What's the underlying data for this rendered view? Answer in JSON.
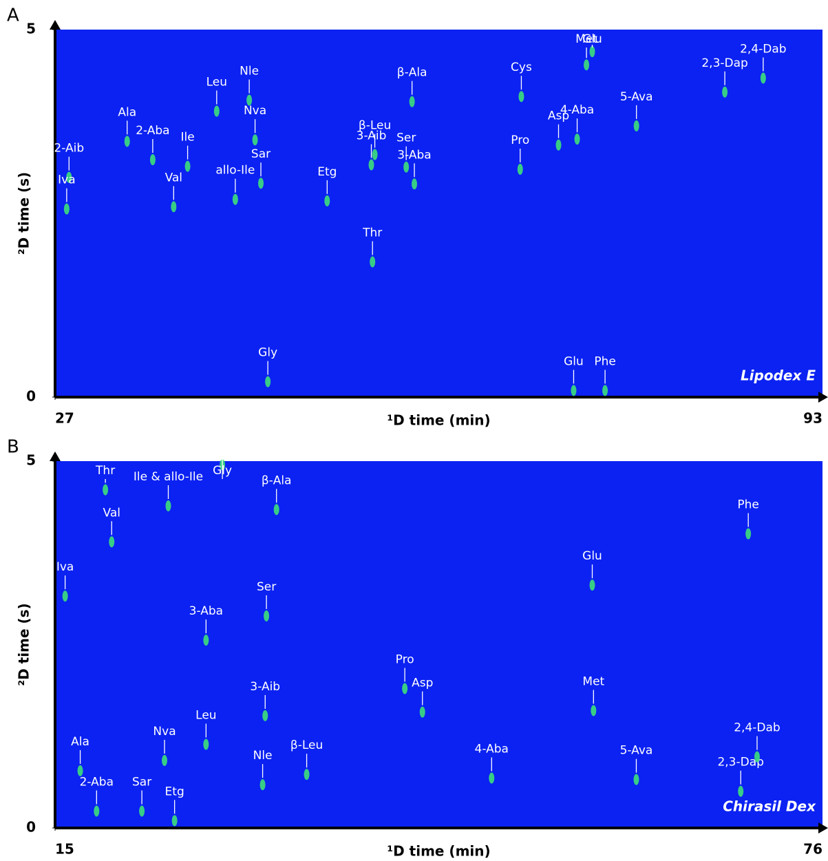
{
  "chart_data": [
    {
      "type": "scatter",
      "panel": "A",
      "column": "Lipodex E",
      "xlabel": "¹D time (min)",
      "ylabel": "²D time (s)",
      "xlim": [
        27,
        93
      ],
      "ylim": [
        0,
        5
      ],
      "xticks": [
        27,
        93
      ],
      "yticks": [
        0,
        5
      ],
      "background": "#0b22f2",
      "color": "#3de07a",
      "peaks": [
        {
          "label": "2-Aib",
          "x": 28.2,
          "y": 2.99
        },
        {
          "label": "Iva",
          "x": 28.0,
          "y": 2.56
        },
        {
          "label": "Ala",
          "x": 33.2,
          "y": 3.48
        },
        {
          "label": "2-Aba",
          "x": 35.4,
          "y": 3.23
        },
        {
          "label": "Val",
          "x": 37.2,
          "y": 2.59
        },
        {
          "label": "Ile",
          "x": 38.4,
          "y": 3.14
        },
        {
          "label": "allo-Ile",
          "x": 42.5,
          "y": 2.69
        },
        {
          "label": "Leu",
          "x": 40.9,
          "y": 3.89
        },
        {
          "label": "Nle",
          "x": 43.7,
          "y": 4.04
        },
        {
          "label": "Nva",
          "x": 44.2,
          "y": 3.5
        },
        {
          "label": "Sar",
          "x": 44.7,
          "y": 2.91
        },
        {
          "label": "Etg",
          "x": 50.4,
          "y": 2.67
        },
        {
          "label": "Gly",
          "x": 45.3,
          "y": 0.21
        },
        {
          "label": "β-Leu",
          "x": 54.5,
          "y": 3.3
        },
        {
          "label": "3-Aib",
          "x": 54.2,
          "y": 3.16
        },
        {
          "label": "β-Ala",
          "x": 57.7,
          "y": 4.02
        },
        {
          "label": "Ser",
          "x": 57.2,
          "y": 3.13
        },
        {
          "label": "3-Aba",
          "x": 57.9,
          "y": 2.9
        },
        {
          "label": "Thr",
          "x": 54.3,
          "y": 1.84
        },
        {
          "label": "Cys",
          "x": 67.1,
          "y": 4.09
        },
        {
          "label": "Pro",
          "x": 67.0,
          "y": 3.1
        },
        {
          "label": "Asp",
          "x": 70.3,
          "y": 3.43
        },
        {
          "label": "4-Aba",
          "x": 71.9,
          "y": 3.51
        },
        {
          "label": "Met",
          "x": 72.7,
          "y": 4.52
        },
        {
          "label": "Glu",
          "x": 73.2,
          "y": 4.7
        },
        {
          "label": "5-Ava",
          "x": 77.0,
          "y": 3.69
        },
        {
          "label": "2,3-Dap",
          "x": 84.6,
          "y": 4.15
        },
        {
          "label": "2,4-Dab",
          "x": 87.9,
          "y": 4.34
        },
        {
          "label": "Glu",
          "x": 71.6,
          "y": 0.09
        },
        {
          "label": "Phe",
          "x": 74.3,
          "y": 0.09
        }
      ]
    },
    {
      "type": "scatter",
      "panel": "B",
      "column": "Chirasil Dex",
      "xlabel": "¹D time (min)",
      "ylabel": "²D time (s)",
      "xlim": [
        15,
        76
      ],
      "ylim": [
        0,
        5
      ],
      "xticks": [
        15,
        76
      ],
      "yticks": [
        0,
        5
      ],
      "background": "#0b22f2",
      "color": "#3de07a",
      "peaks": [
        {
          "label": "Thr",
          "x": 19.0,
          "y": 4.61
        },
        {
          "label": "Ile & allo-Ile",
          "x": 24.0,
          "y": 4.39
        },
        {
          "label": "Gly",
          "x": 28.3,
          "y": 4.95
        },
        {
          "label": "β-Ala",
          "x": 32.6,
          "y": 4.34
        },
        {
          "label": "Iva",
          "x": 15.8,
          "y": 3.16
        },
        {
          "label": "Val",
          "x": 19.5,
          "y": 3.9
        },
        {
          "label": "Glu",
          "x": 57.7,
          "y": 3.31
        },
        {
          "label": "Phe",
          "x": 70.1,
          "y": 4.01
        },
        {
          "label": "3-Aba",
          "x": 27.0,
          "y": 2.56
        },
        {
          "label": "Ser",
          "x": 31.8,
          "y": 2.89
        },
        {
          "label": "3-Aib",
          "x": 31.7,
          "y": 1.53
        },
        {
          "label": "Asp",
          "x": 44.2,
          "y": 1.58
        },
        {
          "label": "Pro",
          "x": 42.8,
          "y": 1.9
        },
        {
          "label": "Met",
          "x": 57.8,
          "y": 1.6
        },
        {
          "label": "Leu",
          "x": 27.0,
          "y": 1.14
        },
        {
          "label": "Nva",
          "x": 23.7,
          "y": 0.92
        },
        {
          "label": "Ala",
          "x": 17.0,
          "y": 0.78
        },
        {
          "label": "2-Aba",
          "x": 18.3,
          "y": 0.23
        },
        {
          "label": "Sar",
          "x": 21.9,
          "y": 0.23
        },
        {
          "label": "Etg",
          "x": 24.5,
          "y": 0.1
        },
        {
          "label": "Nle",
          "x": 31.5,
          "y": 0.59
        },
        {
          "label": "β-Leu",
          "x": 35.0,
          "y": 0.73
        },
        {
          "label": "4-Aba",
          "x": 49.7,
          "y": 0.68
        },
        {
          "label": "5-Ava",
          "x": 61.2,
          "y": 0.66
        },
        {
          "label": "2,3-Dap",
          "x": 69.5,
          "y": 0.5
        },
        {
          "label": "2,4-Dab",
          "x": 70.8,
          "y": 0.97
        }
      ]
    }
  ]
}
